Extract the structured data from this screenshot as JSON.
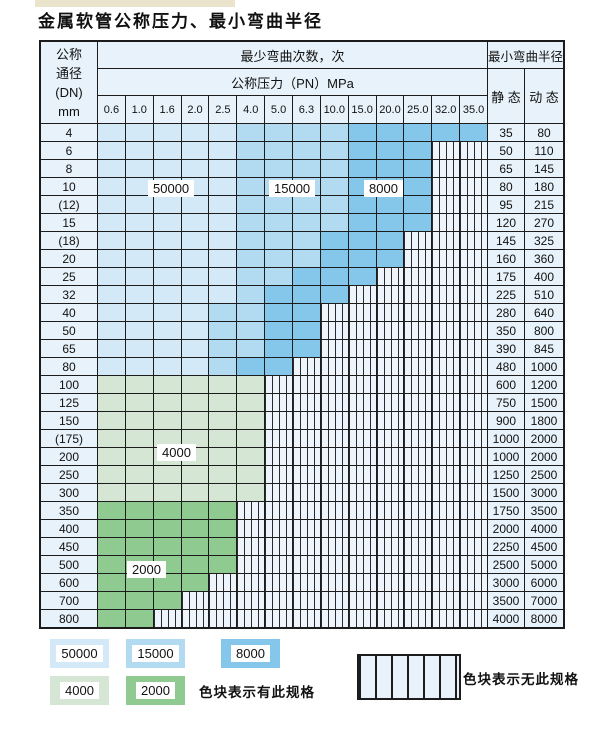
{
  "title": "金属软管公称压力、最小弯曲半径",
  "table": {
    "header": {
      "dn_label_lines": [
        "公称",
        "通径",
        "(DN)",
        "mm"
      ],
      "cycles_label": "最少弯曲次数，次",
      "pressure_label": "公称压力（PN）MPa",
      "radius_label": "最小弯曲半径",
      "static_label": "静 态",
      "dynamic_label": "动 态",
      "pressure_columns": [
        "0.6",
        "1.0",
        "1.6",
        "2.0",
        "2.5",
        "4.0",
        "5.0",
        "6.3",
        "10.0",
        "15.0",
        "20.0",
        "25.0",
        "32.0",
        "35.0"
      ]
    },
    "rows": [
      {
        "dn": "4",
        "colored": 14,
        "shade": "blue",
        "band": [
          5,
          9
        ],
        "static": "35",
        "dynamic": "80"
      },
      {
        "dn": "6",
        "colored": 12,
        "shade": "blue",
        "band": [
          5,
          9
        ],
        "static": "50",
        "dynamic": "110"
      },
      {
        "dn": "8",
        "colored": 12,
        "shade": "blue",
        "band": [
          5,
          9
        ],
        "static": "65",
        "dynamic": "145"
      },
      {
        "dn": "10",
        "colored": 12,
        "shade": "blue",
        "band": [
          5,
          9
        ],
        "static": "80",
        "dynamic": "180"
      },
      {
        "dn": "(12)",
        "colored": 12,
        "shade": "blue",
        "band": [
          5,
          9
        ],
        "static": "95",
        "dynamic": "215"
      },
      {
        "dn": "15",
        "colored": 12,
        "shade": "blue",
        "band": [
          5,
          9
        ],
        "static": "120",
        "dynamic": "270"
      },
      {
        "dn": "(18)",
        "colored": 11,
        "shade": "blue",
        "band": [
          5,
          8
        ],
        "static": "145",
        "dynamic": "325"
      },
      {
        "dn": "20",
        "colored": 11,
        "shade": "blue",
        "band": [
          5,
          8
        ],
        "static": "160",
        "dynamic": "360"
      },
      {
        "dn": "25",
        "colored": 10,
        "shade": "blue",
        "band": [
          5,
          7
        ],
        "static": "175",
        "dynamic": "400"
      },
      {
        "dn": "32",
        "colored": 9,
        "shade": "blue",
        "band": [
          5,
          6
        ],
        "static": "225",
        "dynamic": "510"
      },
      {
        "dn": "40",
        "colored": 8,
        "shade": "blue",
        "band": [
          4,
          6
        ],
        "static": "280",
        "dynamic": "640"
      },
      {
        "dn": "50",
        "colored": 8,
        "shade": "blue",
        "band": [
          4,
          6
        ],
        "static": "350",
        "dynamic": "800"
      },
      {
        "dn": "65",
        "colored": 8,
        "shade": "blue",
        "band": [
          4,
          6
        ],
        "static": "390",
        "dynamic": "845"
      },
      {
        "dn": "80",
        "colored": 7,
        "shade": "blue",
        "band": [
          4,
          5
        ],
        "static": "480",
        "dynamic": "1000"
      },
      {
        "dn": "100",
        "colored": 6,
        "shade": "g1",
        "static": "600",
        "dynamic": "1200"
      },
      {
        "dn": "125",
        "colored": 6,
        "shade": "g1",
        "static": "750",
        "dynamic": "1500"
      },
      {
        "dn": "150",
        "colored": 6,
        "shade": "g1",
        "static": "900",
        "dynamic": "1800"
      },
      {
        "dn": "(175)",
        "colored": 6,
        "shade": "g1",
        "static": "1000",
        "dynamic": "2000"
      },
      {
        "dn": "200",
        "colored": 6,
        "shade": "g1",
        "static": "1000",
        "dynamic": "2000"
      },
      {
        "dn": "250",
        "colored": 6,
        "shade": "g1",
        "static": "1250",
        "dynamic": "2500"
      },
      {
        "dn": "300",
        "colored": 6,
        "shade": "g1",
        "static": "1500",
        "dynamic": "3000"
      },
      {
        "dn": "350",
        "colored": 5,
        "shade": "g2",
        "static": "1750",
        "dynamic": "3500"
      },
      {
        "dn": "400",
        "colored": 5,
        "shade": "g2",
        "static": "2000",
        "dynamic": "4000"
      },
      {
        "dn": "450",
        "colored": 5,
        "shade": "g2",
        "static": "2250",
        "dynamic": "4500"
      },
      {
        "dn": "500",
        "colored": 5,
        "shade": "g2",
        "static": "2500",
        "dynamic": "5000"
      },
      {
        "dn": "600",
        "colored": 4,
        "shade": "g2",
        "static": "3000",
        "dynamic": "6000"
      },
      {
        "dn": "700",
        "colored": 3,
        "shade": "g2",
        "static": "3500",
        "dynamic": "7000"
      },
      {
        "dn": "800",
        "colored": 2,
        "shade": "g2",
        "static": "4000",
        "dynamic": "8000"
      }
    ]
  },
  "overlays": [
    {
      "text": "50000"
    },
    {
      "text": "15000"
    },
    {
      "text": "8000"
    },
    {
      "text": "4000"
    },
    {
      "text": "2000"
    }
  ],
  "legend": {
    "items": [
      {
        "value": "50000",
        "color": "#d3e9f7"
      },
      {
        "value": "15000",
        "color": "#b2daf1"
      },
      {
        "value": "8000",
        "color": "#84c7ea"
      },
      {
        "value": "4000",
        "color": "#d5e7d4"
      },
      {
        "value": "2000",
        "color": "#8fca91"
      }
    ],
    "has_spec_text": "色块表示有此规格",
    "no_spec_text": "色块表示无此规格"
  },
  "colors": {
    "cycles_50000": "#d3e9f7",
    "cycles_15000": "#b2daf1",
    "cycles_8000": "#84c7ea",
    "cycles_4000": "#d5e7d4",
    "cycles_2000": "#8fca91",
    "header_bg": "#e7f2fa",
    "hatch_bg": "#edf4fb",
    "grid_line": "#1c1c1c"
  }
}
